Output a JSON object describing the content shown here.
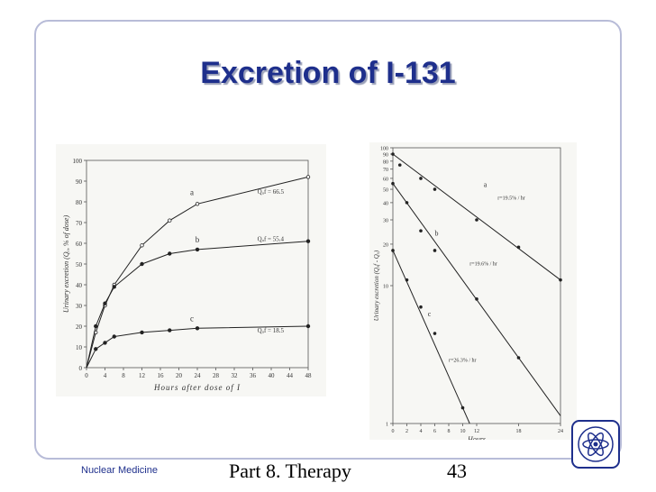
{
  "slide": {
    "title": "Excretion of I-131",
    "footer_left": "Nuclear Medicine",
    "footer_center": "Part 8. Therapy",
    "page_number": "43"
  },
  "chart_data": [
    {
      "type": "line",
      "xlabel": "Hours after dose of I",
      "ylabel": "Urinary excretion (Qᵤ, % of dose)",
      "xlim": [
        0,
        48
      ],
      "ylim": [
        0,
        100
      ],
      "xticks": [
        "0",
        "4",
        "8",
        "12",
        "16",
        "20",
        "24",
        "28",
        "32",
        "36",
        "40",
        "44",
        "48"
      ],
      "yticks": [
        "0",
        "10",
        "20",
        "30",
        "40",
        "50",
        "60",
        "70",
        "80",
        "90",
        "100"
      ],
      "series": [
        {
          "name": "a",
          "annotation": "Qᵤf = 66.5",
          "x": [
            0,
            2,
            4,
            6,
            12,
            18,
            24,
            48
          ],
          "y": [
            0,
            17,
            30,
            40,
            59,
            71,
            79,
            92
          ]
        },
        {
          "name": "b",
          "annotation": "Qᵤf = 55.4",
          "x": [
            0,
            2,
            4,
            6,
            12,
            18,
            24,
            48
          ],
          "y": [
            0,
            20,
            31,
            39,
            50,
            55,
            57,
            61
          ]
        },
        {
          "name": "c",
          "annotation": "Qᵤf = 18.5",
          "x": [
            0,
            2,
            4,
            6,
            12,
            18,
            24,
            48
          ],
          "y": [
            0,
            9,
            12,
            15,
            17,
            18,
            19,
            20
          ]
        }
      ]
    },
    {
      "type": "line",
      "xlabel": "Hours",
      "ylabel": "Urinary excretion (Qᵤf - Qᵤ)",
      "yscale": "log",
      "xlim": [
        0,
        24
      ],
      "ylim": [
        1,
        100
      ],
      "xticks": [
        "0",
        "2",
        "4",
        "6",
        "8",
        "10",
        "12",
        "18",
        "24"
      ],
      "yticks": [
        "1",
        "10",
        "20",
        "30",
        "40",
        "50",
        "60",
        "70",
        "80",
        "90",
        "100"
      ],
      "series": [
        {
          "name": "a",
          "annotation": "r=19.5% / hr",
          "x": [
            0,
            1,
            4,
            6,
            12,
            18,
            24
          ],
          "y": [
            90,
            75,
            60,
            50,
            30,
            19,
            11
          ]
        },
        {
          "name": "b",
          "annotation": "r=19.6% / hr",
          "x": [
            0,
            2,
            4,
            6,
            12,
            18
          ],
          "y": [
            55,
            40,
            25,
            18,
            8,
            3
          ]
        },
        {
          "name": "c",
          "annotation": "r=26.3% / hr",
          "x": [
            0,
            2,
            4,
            6,
            10
          ],
          "y": [
            18,
            11,
            7,
            4.5,
            1.3
          ]
        }
      ]
    }
  ]
}
